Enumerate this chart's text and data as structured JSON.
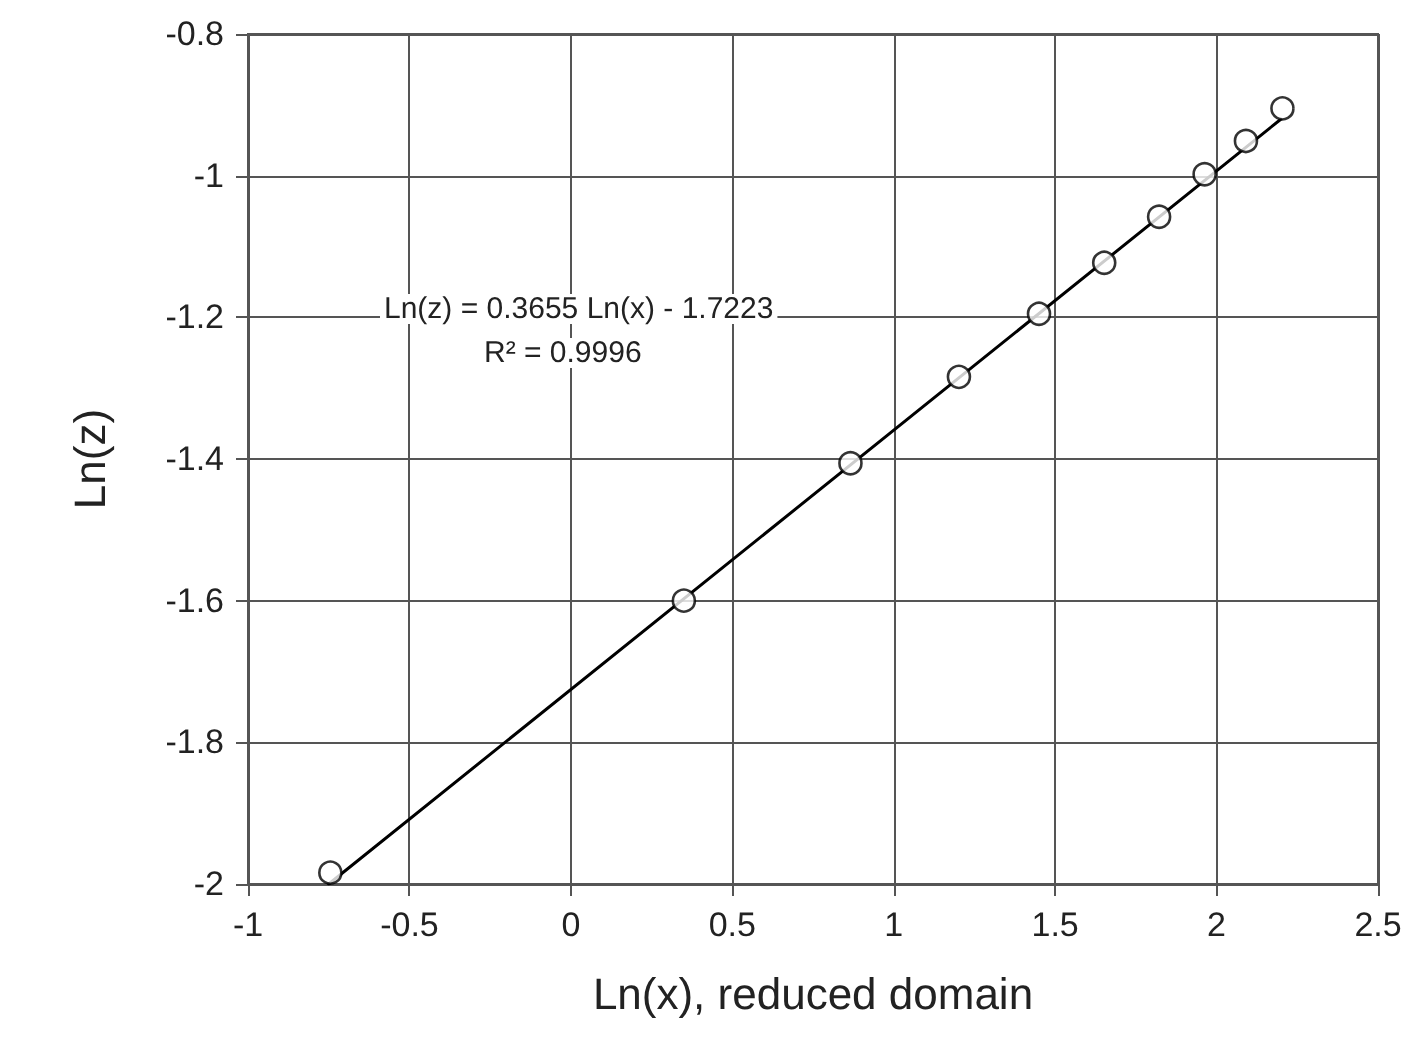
{
  "chart_data": {
    "type": "scatter",
    "xlabel": "Ln(x), reduced domain",
    "ylabel": "Ln(z)",
    "series": [
      {
        "color": "#000000",
        "marker": "circle",
        "x": [
          -0.745,
          0.35,
          0.866,
          1.202,
          1.45,
          1.652,
          1.822,
          1.963,
          2.091,
          2.204
        ],
        "values": [
          -1.984,
          -1.6,
          -1.406,
          -1.284,
          -1.195,
          -1.123,
          -1.058,
          -0.998,
          -0.951,
          -0.905
        ]
      },
      {
        "type": "line",
        "color": "#000000",
        "marker": "none",
        "line_style": "solid",
        "x": [
          -0.75,
          2.2
        ],
        "values": [
          -2.0,
          -0.92
        ]
      }
    ],
    "annotations": [
      "Ln(z) = 0.3655 Ln(x) - 1.7223",
      "R² = 0.9996"
    ],
    "xlim": [
      -1,
      2.5
    ],
    "xticks": [
      -1,
      -0.5,
      0,
      0.5,
      1,
      1.5,
      2,
      2.5
    ],
    "ylim": [
      -2,
      -0.8
    ],
    "yticks": [
      -2,
      -1.8,
      -1.6,
      -1.4,
      -1.2,
      -1,
      -0.8
    ],
    "grid": true
  }
}
